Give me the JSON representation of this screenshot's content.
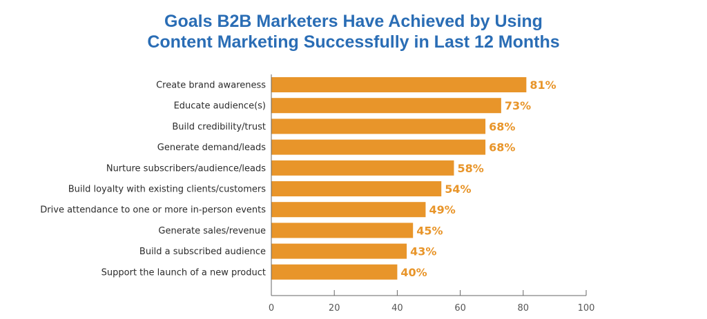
{
  "chart_data": {
    "type": "bar",
    "orientation": "horizontal",
    "title_lines": [
      "Goals B2B Marketers Have Achieved by Using",
      "Content Marketing Successfully in Last 12 Months"
    ],
    "categories": [
      "Create brand awareness",
      "Educate audience(s)",
      "Build credibility/trust",
      "Generate demand/leads",
      "Nurture subscribers/audience/leads",
      "Build loyalty with existing clients/customers",
      "Drive attendance to one or more in-person events",
      "Generate sales/revenue",
      "Build a subscribed audience",
      "Support the launch of a new product"
    ],
    "values": [
      81,
      73,
      68,
      68,
      58,
      54,
      49,
      45,
      43,
      40
    ],
    "data_labels": [
      "81%",
      "73%",
      "68%",
      "68%",
      "58%",
      "54%",
      "49%",
      "45%",
      "43%",
      "40%"
    ],
    "xlabel": "",
    "ylabel": "",
    "xlim": [
      0,
      100
    ],
    "xticks": [
      0,
      20,
      40,
      60,
      80,
      100
    ],
    "xtick_labels": [
      "0",
      "20",
      "40",
      "60",
      "80",
      "100"
    ],
    "grid": false,
    "legend": "none",
    "colors": {
      "bar": "#e8952a",
      "title": "#2a6db5",
      "axis": "#666666"
    }
  }
}
